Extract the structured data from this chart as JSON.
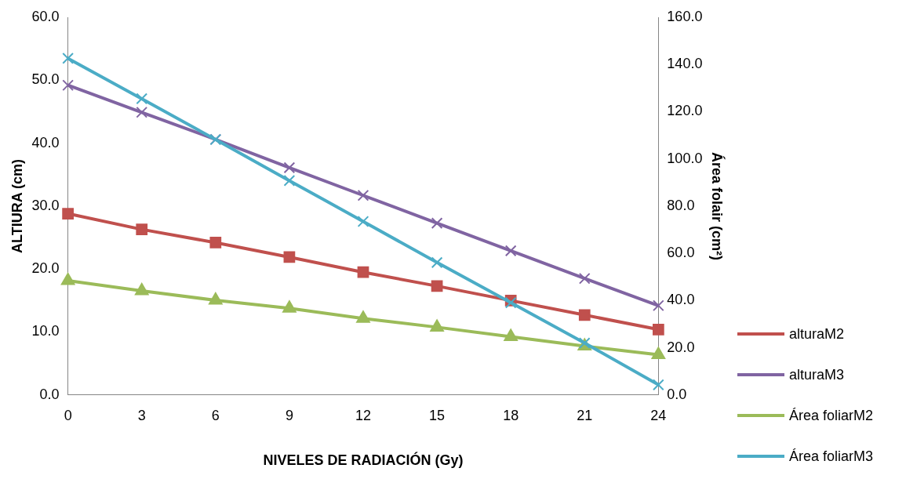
{
  "chart_data": {
    "type": "line",
    "xlabel": "NIVELES DE RADIACIÓN (Gy)",
    "ylabel": "ALTIURA (cm)",
    "y2label": "Área folair (cm²)",
    "categories": [
      "0",
      "3",
      "6",
      "9",
      "12",
      "15",
      "18",
      "21",
      "24"
    ],
    "ylim": [
      0,
      60
    ],
    "yticks": [
      {
        "value": 0,
        "label": "0.0"
      },
      {
        "value": 10,
        "label": "10.0"
      },
      {
        "value": 20,
        "label": "20.0"
      },
      {
        "value": 30,
        "label": "30.0"
      },
      {
        "value": 40,
        "label": "40.0"
      },
      {
        "value": 50,
        "label": "50.0"
      },
      {
        "value": 60,
        "label": "60.0"
      }
    ],
    "y2lim": [
      0,
      160
    ],
    "y2ticks": [
      {
        "value": 0,
        "label": "0.0"
      },
      {
        "value": 20,
        "label": "20.0"
      },
      {
        "value": 40,
        "label": "40.0"
      },
      {
        "value": 60,
        "label": "60.0"
      },
      {
        "value": 80,
        "label": "80.0"
      },
      {
        "value": 100,
        "label": "100.0"
      },
      {
        "value": 120,
        "label": "120.0"
      },
      {
        "value": 140,
        "label": "140.0"
      },
      {
        "value": 160,
        "label": "160.0"
      }
    ],
    "legend": "right",
    "grid": false,
    "line_style": "solid",
    "series": [
      {
        "name": "alturaM2",
        "color": "#c0504d",
        "marker": "square",
        "values": [
          28.8,
          26.3,
          24.2,
          21.9,
          19.5,
          17.3,
          15.0,
          12.7,
          10.4
        ]
      },
      {
        "name": "alturaM3",
        "color": "#8064a2",
        "marker": "cross",
        "values": [
          49.2,
          44.9,
          40.6,
          36.1,
          31.7,
          27.3,
          22.9,
          18.5,
          14.2
        ]
      },
      {
        "name": "Área foliarM2",
        "color": "#9bbb59",
        "marker": "triangle",
        "axis": "y2",
        "values": [
          48.4,
          44.1,
          40.1,
          36.7,
          32.4,
          28.7,
          24.7,
          20.7,
          17.0
        ]
      },
      {
        "name": "Área foliarM3",
        "color": "#4bacc6",
        "marker": "cross",
        "axis": "y2",
        "values": [
          142.6,
          125.5,
          108.2,
          90.8,
          73.5,
          56.1,
          39.1,
          22.0,
          4.3
        ]
      }
    ]
  }
}
